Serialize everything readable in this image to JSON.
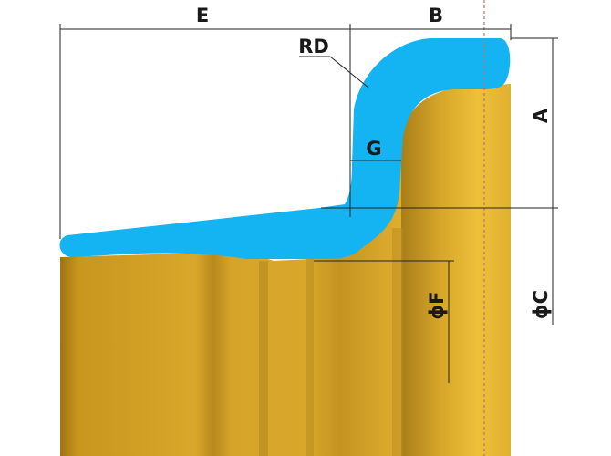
{
  "labels": {
    "E": "E",
    "B": "B",
    "RD": "RD",
    "G": "G",
    "A": "A",
    "C": "ϕC",
    "F": "ϕF"
  },
  "colors": {
    "rim_body": "#D8A628",
    "rim_shadow": "#9C7414",
    "rim_highlight": "#F2C63A",
    "flange_profile": "#14B4F2",
    "dimension_line": "#222222",
    "centerline": "#C07070"
  }
}
